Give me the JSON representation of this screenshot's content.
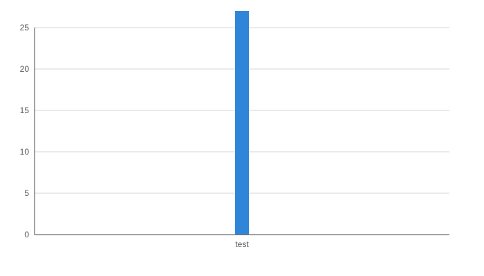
{
  "chart_data": {
    "type": "bar",
    "categories": [
      "test"
    ],
    "values": [
      27
    ],
    "title": "",
    "xlabel": "",
    "ylabel": "",
    "ylim": [
      0,
      25
    ],
    "y_ticks": [
      "0",
      "5",
      "10",
      "15",
      "20",
      "25"
    ],
    "grid": true,
    "legend": "none",
    "colors": {
      "bar": "#2f86d9",
      "grid": "#d6d6d6",
      "axis": "#444444"
    }
  }
}
